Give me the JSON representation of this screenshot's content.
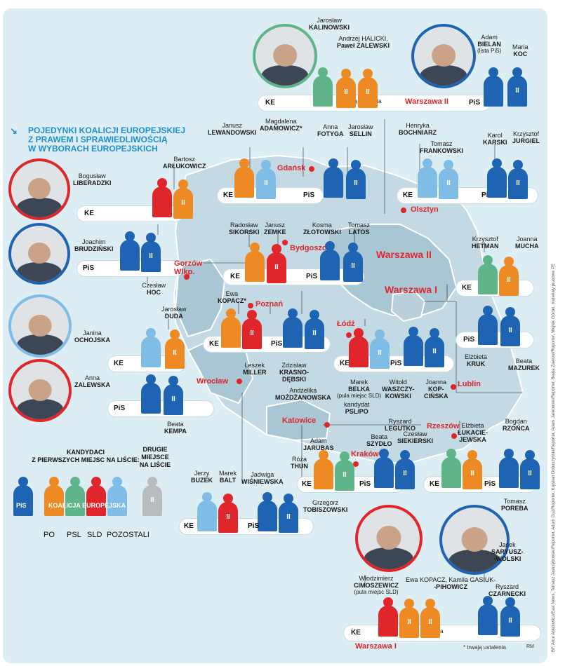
{
  "title_lines": [
    "POJEDYNKI KOALICJI EUROPEJSKIEJ",
    "Z PRAWEM I SPRAWIEDLIWOŚCIĄ",
    "W WYBORACH EUROPEJSKICH"
  ],
  "title_arrow": "↘",
  "colors": {
    "pis": "#1f63b3",
    "ke_orange": "#ee8a23",
    "ke_green": "#5fb48a",
    "ke_red": "#e0262b",
    "ke_lightblue": "#7fbde6",
    "second": "#b9bcbf",
    "city": "#e0262b",
    "map_fill": "#a8c6d4",
    "map_light": "#c3d9e3",
    "background": "#dcedf4"
  },
  "party_labels": {
    "ke": "KE",
    "pis": "PiS"
  },
  "fig_number": "II",
  "note_trwaja": "trwają ustalenia",
  "legend": {
    "heading": "KANDYDACI\nZ PIERWSZYCH MIEJSC NA LIŚCIE:",
    "second_heading": "DRUGIE\nMIEJSCE\nNA LIŚCIE",
    "pis_label": "PiS",
    "ke_label": "KOALICJA EUROPEJSKA",
    "po": "PO",
    "psl": "PSL",
    "sld": "SLD",
    "others": "POZOSTALI"
  },
  "footnote": "* trwają ustalenia",
  "signature": "RM",
  "credits": "BF, Artur Abłatowicz/East News, Tomasz Jastrzębowski/Reporter, Adam Guz/Reporter, Krystian Dobuszyński/Reporter, Adam Jankowski/Reporter, Beata Zawrzel/Reporter, Wojtek Górski, materiały prasowe PE",
  "cities": {
    "gdansk": "Gdańsk",
    "olsztyn": "Olsztyn",
    "bydgoszcz": "Bydgoszcz",
    "gorzow": "Gorzów\nWlkp.",
    "warszawa2": "Warszawa II",
    "warszawa1": "Warszawa I",
    "poznan": "Poznań",
    "lodz": "Łódź",
    "wroclaw": "Wrocław",
    "lublin": "Lublin",
    "katowice": "Katowice",
    "rzeszow": "Rzeszów",
    "krakow": "Kraków",
    "warszawa2_tag": "Warszawa II",
    "warszawa1_tag": "Warszawa I"
  },
  "people": {
    "kalinowski": {
      "first": "Jarosław",
      "last": "KALINOWSKI"
    },
    "halicki_zalewski": {
      "first": "Andrzej HALICKI,",
      "last": "Paweł ZALEWSKI"
    },
    "bielan": {
      "first": "Adam",
      "last": "BIELAN",
      "note": "(lista PiS)"
    },
    "koc": {
      "first": "Maria",
      "last": "KOC"
    },
    "lewandowski": {
      "first": "Janusz",
      "last": "LEWANDOWSKI"
    },
    "adamowicz": {
      "first": "Magdalena",
      "last": "ADAMOWICZ*"
    },
    "fotyga": {
      "first": "Anna",
      "last": "FOTYGA"
    },
    "sellin": {
      "first": "Jarosław",
      "last": "SELLIN"
    },
    "bochniarz": {
      "first": "Henryka",
      "last": "BOCHNIARZ"
    },
    "frankowski": {
      "first": "Tomasz",
      "last": "FRANKOWSKI"
    },
    "karski": {
      "first": "Karol",
      "last": "KARSKI"
    },
    "jurgiel": {
      "first": "Krzysztof",
      "last": "JURGIEL"
    },
    "arlukowicz": {
      "first": "Bartosz",
      "last": "ARŁUKOWICZ"
    },
    "liberadzki": {
      "first": "Bogusław",
      "last": "LIBERADZKI"
    },
    "brudzinski": {
      "first": "Joachim",
      "last": "BRUDZIŃSKI"
    },
    "hoc": {
      "first": "Czesław",
      "last": "HOC"
    },
    "sikorski": {
      "first": "Radosław",
      "last": "SIKORSKI"
    },
    "zemke": {
      "first": "Janusz",
      "last": "ZEMKE"
    },
    "zlotowski": {
      "first": "Kosma",
      "last": "ZŁOTOWSKI"
    },
    "latos": {
      "first": "Tomasz",
      "last": "LATOS"
    },
    "hetman": {
      "first": "Krzysztof",
      "last": "HETMAN"
    },
    "mucha": {
      "first": "Joanna",
      "last": "MUCHA"
    },
    "kopacz_p": {
      "first": "Ewa",
      "last": "KOPACZ*"
    },
    "duda": {
      "first": "Jarosław",
      "last": "DUDA"
    },
    "ochojska": {
      "first": "Janina",
      "last": "OCHOJSKA"
    },
    "miller": {
      "first": "Leszek",
      "last": "MILLER"
    },
    "krasnodebski": {
      "first": "Zdzisław",
      "last": "KRASNO-\nDĘBSKI"
    },
    "mozdzanowska": {
      "first": "Andżelika",
      "last": "MOŻDŻANOWSKA"
    },
    "belka": {
      "first": "Marek",
      "last": "BELKA",
      "note": "(pula miejsc SLD)"
    },
    "waszczykowski": {
      "first": "Witold",
      "last": "WASZCZY-\nKOWSKI"
    },
    "kopcinska": {
      "first": "Joanna",
      "last": "KOP-\nCIŃSKA"
    },
    "psl_po": {
      "first": "kandydat",
      "last": "PSL/PO"
    },
    "kruk": {
      "first": "Elżbieta",
      "last": "KRUK"
    },
    "mazurek": {
      "first": "Beata",
      "last": "MAZUREK"
    },
    "zalewska": {
      "first": "Anna",
      "last": "ZALEWSKA"
    },
    "kempa": {
      "first": "Beata",
      "last": "KEMPA"
    },
    "jarubas": {
      "first": "Adam",
      "last": "JARUBAS"
    },
    "thun": {
      "first": "Róża",
      "last": "THUN"
    },
    "legutko": {
      "first": "Ryszard",
      "last": "LEGUTKO"
    },
    "szydlo": {
      "first": "Beata",
      "last": "SZYDŁO"
    },
    "siekierski": {
      "first": "Czesław",
      "last": "SIEKIERSKI"
    },
    "lukacijewska": {
      "first": "Elżbieta",
      "last": "ŁUKACIE-\nJEWSKA"
    },
    "rzonca": {
      "first": "Bogdan",
      "last": "RZOŃCA"
    },
    "poreba": {
      "first": "Tomasz",
      "last": "POREBA"
    },
    "buzek": {
      "first": "Jerzy",
      "last": "BUZEK"
    },
    "balt": {
      "first": "Marek",
      "last": "BALT"
    },
    "wisniewska": {
      "first": "Jadwiga",
      "last": "WIŚNIEWSKA"
    },
    "tobiszowski": {
      "first": "Grzegorz",
      "last": "TOBISZOWSKI"
    },
    "cimoszewicz": {
      "first": "Włodzimierz",
      "last": "CIMOSZEWICZ",
      "note": "(pula miejsc SLD)"
    },
    "kopacz_gasiuk": {
      "first": "Ewa KOPACZ, Kamila GASIUK-",
      "last": "-PIHOWICZ"
    },
    "saryusz": {
      "first": "Jacek",
      "last": "SARYUSZ-\n-WOLSKI"
    },
    "czarnecki": {
      "first": "Ryszard",
      "last": "CZARNECKI"
    }
  }
}
